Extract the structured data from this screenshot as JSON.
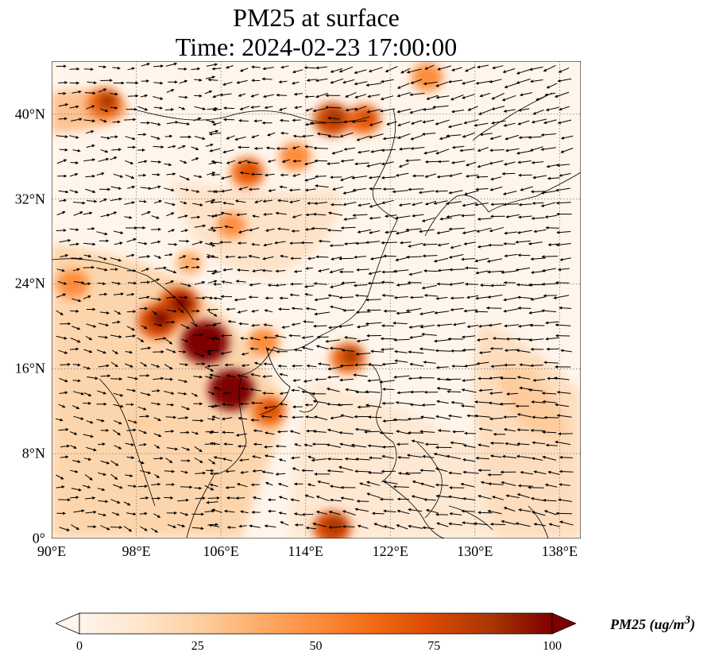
{
  "title_line1": "PM25 at surface",
  "title_line2": "Time: 2024-02-23 17:00:00",
  "lat_labels": [
    "0°",
    "8°N",
    "16°N",
    "24°N",
    "32°N",
    "40°N"
  ],
  "lat_values": [
    0,
    8,
    16,
    24,
    32,
    40
  ],
  "lon_labels": [
    "90°E",
    "98°E",
    "106°E",
    "114°E",
    "122°E",
    "130°E",
    "138°E"
  ],
  "lon_values": [
    90,
    98,
    106,
    114,
    122,
    130,
    138
  ],
  "extent": {
    "lon_min": 90,
    "lon_max": 140,
    "lat_min": 0,
    "lat_max": 45
  },
  "colorbar": {
    "ticks": [
      "0",
      "25",
      "50",
      "75",
      "100"
    ],
    "tick_values": [
      0,
      25,
      50,
      75,
      100
    ],
    "min": 0,
    "max": 100,
    "unit_label": "PM25 (ug/m",
    "unit_sup": "3",
    "unit_close": ")",
    "colors": [
      "#fff5eb",
      "#fee6ce",
      "#fdd0a2",
      "#fdae6b",
      "#fd8d3c",
      "#f16913",
      "#d94801",
      "#a63603",
      "#7f0000"
    ]
  },
  "hotspots": [
    {
      "lon": 104.5,
      "lat": 18.5,
      "value": 100
    },
    {
      "lon": 107.0,
      "lat": 14.0,
      "value": 95
    },
    {
      "lon": 102.0,
      "lat": 22.0,
      "value": 80
    },
    {
      "lon": 100.0,
      "lat": 20.5,
      "value": 75
    },
    {
      "lon": 95.0,
      "lat": 41.0,
      "value": 65
    },
    {
      "lon": 92.0,
      "lat": 24.0,
      "value": 55
    },
    {
      "lon": 110.0,
      "lat": 18.5,
      "value": 55
    },
    {
      "lon": 108.5,
      "lat": 34.5,
      "value": 60
    },
    {
      "lon": 113.0,
      "lat": 36.0,
      "value": 55
    },
    {
      "lon": 116.5,
      "lat": 39.5,
      "value": 70
    },
    {
      "lon": 119.5,
      "lat": 39.5,
      "value": 60
    },
    {
      "lon": 118.0,
      "lat": 17.0,
      "value": 65
    },
    {
      "lon": 107.0,
      "lat": 29.5,
      "value": 45
    },
    {
      "lon": 125.5,
      "lat": 43.5,
      "value": 55
    },
    {
      "lon": 116.5,
      "lat": 1.0,
      "value": 70
    },
    {
      "lon": 110.5,
      "lat": 12.0,
      "value": 60
    },
    {
      "lon": 103.0,
      "lat": 26.0,
      "value": 40
    },
    {
      "lon": 135.0,
      "lat": 15.0,
      "value": 28
    },
    {
      "lon": 98.5,
      "lat": 11.0,
      "value": 30
    }
  ]
}
